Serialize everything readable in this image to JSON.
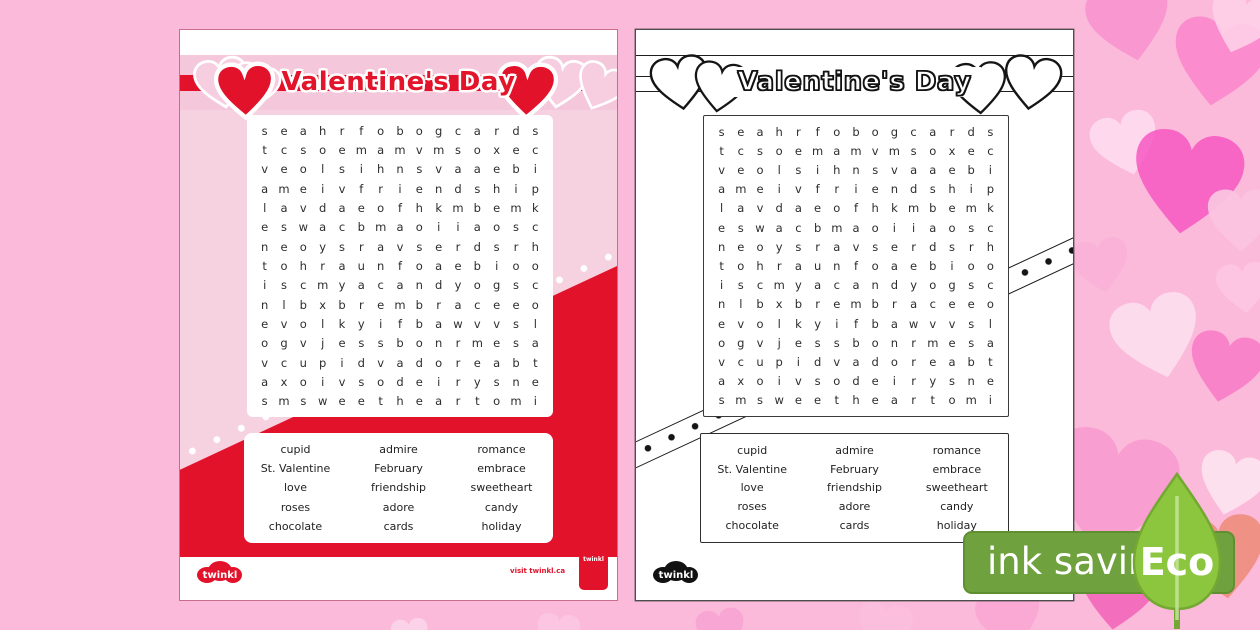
{
  "worksheet": {
    "title": "Valentine's Day",
    "grid_rows": [
      "seahrfobogcards",
      "tcsoemamvmsoxec",
      "veolsihnsvaaebi",
      "ameivfriendship",
      "lavdaeofhkmbemk",
      "eswacbmaoiiaosc",
      "neoysravserdsrh",
      "tohraunfoaebioo",
      "iscmyacandyogsc",
      "nlbxbrembraceeo",
      "evolkyifbawvvsl",
      "ogvjessbonrmesa",
      "vcupidvadoreabt",
      "axoivsodeirysne",
      "smsweetheartomi"
    ],
    "word_columns": [
      [
        "cupid",
        "St. Valentine",
        "love",
        "roses",
        "chocolate"
      ],
      [
        "admire",
        "February",
        "friendship",
        "adore",
        "cards"
      ],
      [
        "romance",
        "embrace",
        "sweetheart",
        "candy",
        "holiday"
      ]
    ]
  },
  "footer": {
    "brand": "twinkl",
    "visit": "visit twinkl.ca",
    "quality_badge": "twinkl"
  },
  "eco_badge": {
    "label": "ink saving",
    "eco": "Eco"
  },
  "icons": {
    "heart": "heart-icon",
    "leaf": "eco-leaf-icon",
    "cloud": "twinkl-cloud-logo"
  },
  "colors": {
    "background_pink": "#fcbada",
    "page_pink": "#f6d2e1",
    "banner_pink": "#f4c7da",
    "red": "#e3122b",
    "badge_green": "#6fa23e",
    "leaf_green": "#8cc63e"
  }
}
